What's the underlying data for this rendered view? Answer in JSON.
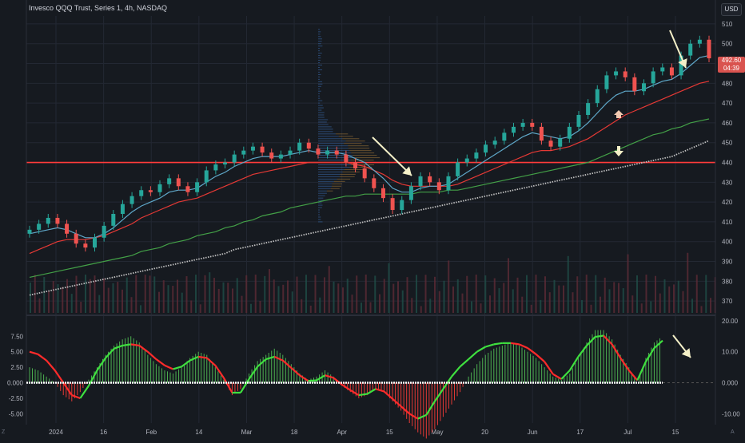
{
  "header": {
    "symbol_title": "Invesco QQQ Trust, Series 1, 4h, NASDAQ",
    "currency": "USD"
  },
  "last_price": {
    "value": "492.60",
    "countdown": "04:39"
  },
  "corner_labels": {
    "left": "Z",
    "right": "A"
  },
  "colors": {
    "background": "#161a20",
    "grid": "#232833",
    "candle_up": "#26a69a",
    "candle_down": "#ef5350",
    "ema_fast": "#5fa8c9",
    "ema_red": "#e53935",
    "ema_green": "#43a047",
    "ema_white": "#bfbfbf",
    "support_line": "#ff3b3b",
    "annotation_arrow": "#f4f0c8",
    "osc_up": "#4caf50",
    "osc_down": "#e53935"
  },
  "chart_data": [
    {
      "type": "line",
      "name": "price",
      "y_axis_ticks": [
        510,
        500,
        490,
        480,
        470,
        460,
        450,
        440,
        430,
        420,
        410,
        400,
        390,
        380,
        370
      ],
      "ylim": [
        364,
        514
      ],
      "x_tick_labels": [
        "2024",
        "16",
        "Feb",
        "14",
        "Mar",
        "18",
        "Apr",
        "15",
        "May",
        "20",
        "Jun",
        "17",
        "Jul",
        "15"
      ],
      "close_series": [
        406,
        409,
        412,
        409,
        404,
        399,
        397,
        402,
        408,
        414,
        419,
        423,
        426,
        425,
        429,
        432,
        428,
        425,
        430,
        436,
        439,
        440,
        444,
        446,
        448,
        445,
        442,
        444,
        446,
        450,
        447,
        444,
        446,
        444,
        440,
        437,
        432,
        427,
        422,
        416,
        421,
        428,
        433,
        430,
        426,
        433,
        440,
        442,
        445,
        449,
        451,
        455,
        458,
        460,
        458,
        451,
        448,
        452,
        458,
        464,
        470,
        477,
        484,
        486,
        483,
        476,
        480,
        486,
        488,
        484,
        494,
        500,
        502,
        492.6
      ],
      "support_level": 440,
      "ema_fast": [
        404,
        405,
        406,
        407,
        406,
        404,
        402,
        402,
        404,
        407,
        411,
        415,
        418,
        420,
        422,
        425,
        426,
        426,
        427,
        430,
        433,
        435,
        438,
        440,
        442,
        443,
        443,
        443,
        444,
        445,
        446,
        445,
        445,
        445,
        444,
        442,
        440,
        436,
        432,
        427,
        425,
        425,
        427,
        428,
        428,
        429,
        432,
        435,
        438,
        441,
        444,
        447,
        450,
        453,
        455,
        454,
        453,
        452,
        453,
        456,
        460,
        465,
        470,
        474,
        476,
        476,
        477,
        479,
        481,
        482,
        485,
        489,
        493,
        494
      ],
      "ema_red": [
        394,
        396,
        398,
        400,
        401,
        401,
        401,
        402,
        403,
        405,
        407,
        409,
        412,
        414,
        416,
        418,
        420,
        421,
        422,
        424,
        426,
        428,
        430,
        432,
        434,
        435,
        436,
        437,
        438,
        439,
        440,
        440,
        440,
        440,
        440,
        439,
        438,
        436,
        434,
        431,
        429,
        428,
        428,
        428,
        428,
        428,
        429,
        431,
        433,
        435,
        437,
        439,
        441,
        443,
        445,
        446,
        446,
        447,
        448,
        450,
        452,
        455,
        458,
        461,
        464,
        466,
        468,
        470,
        472,
        474,
        476,
        478,
        480,
        481
      ],
      "ema_green": [
        382,
        383,
        384,
        385,
        386,
        387,
        388,
        389,
        390,
        391,
        392,
        393,
        395,
        396,
        397,
        399,
        400,
        401,
        403,
        404,
        405,
        407,
        408,
        410,
        411,
        413,
        414,
        415,
        417,
        418,
        419,
        420,
        421,
        422,
        423,
        423,
        424,
        424,
        424,
        424,
        424,
        424,
        425,
        425,
        425,
        426,
        426,
        427,
        428,
        429,
        430,
        431,
        432,
        433,
        434,
        435,
        436,
        437,
        438,
        439,
        440,
        442,
        444,
        446,
        448,
        450,
        452,
        454,
        455,
        457,
        458,
        460,
        461,
        462
      ],
      "ema_white": [
        373,
        374,
        375,
        376,
        377,
        378,
        379,
        380,
        381,
        382,
        383,
        384,
        385,
        386,
        387,
        388,
        389,
        390,
        391,
        392,
        393,
        394,
        396,
        397,
        398,
        399,
        400,
        401,
        402,
        403,
        404,
        405,
        406,
        407,
        408,
        409,
        410,
        411,
        412,
        413,
        414,
        415,
        416,
        417,
        418,
        419,
        420,
        421,
        422,
        423,
        424,
        425,
        426,
        427,
        428,
        429,
        430,
        431,
        432,
        433,
        434,
        435,
        436,
        437,
        438,
        439,
        440,
        441,
        442,
        443,
        445,
        447,
        449,
        451
      ]
    },
    {
      "type": "area",
      "name": "oscillator",
      "left_axis_ticks": [
        "7.50",
        "5.00",
        "2.50",
        "0.000",
        "-2.50",
        "-5.00"
      ],
      "right_axis_ticks": [
        "20.00",
        "10.00",
        "0.000",
        "-10.00"
      ],
      "ylim": [
        -13,
        21
      ],
      "histogram": [
        5,
        4,
        2,
        0,
        -4,
        -6,
        -3,
        1,
        5,
        9,
        12,
        14,
        15,
        13,
        9,
        6,
        4,
        3,
        5,
        8,
        10,
        9,
        5,
        1,
        -4,
        -2,
        3,
        7,
        9,
        11,
        9,
        6,
        3,
        1,
        2,
        4,
        2,
        -1,
        -3,
        -5,
        -4,
        -2,
        -3,
        -6,
        -9,
        -13,
        -16,
        -18,
        -15,
        -11,
        -7,
        -3,
        2,
        6,
        9,
        11,
        12,
        13,
        12,
        10,
        8,
        5,
        2,
        1,
        3,
        8,
        13,
        17,
        17,
        14,
        9,
        5,
        0,
        8,
        13,
        15
      ],
      "signal_line": [
        5,
        4.6,
        3.6,
        2,
        0,
        -2,
        -2.5,
        -0.5,
        2,
        4,
        5.5,
        6,
        6.2,
        6,
        5,
        3.8,
        2.8,
        2.2,
        2.6,
        3.6,
        4.2,
        4,
        2.8,
        0.8,
        -1.6,
        -1.6,
        0.6,
        2.6,
        3.8,
        4.2,
        3.6,
        2.4,
        1.2,
        0.3,
        0.4,
        1.2,
        0.8,
        -0.3,
        -1.2,
        -2,
        -1.8,
        -1,
        -1.4,
        -2.6,
        -3.8,
        -5,
        -5.8,
        -5.2,
        -3,
        -1,
        1,
        2.6,
        3.8,
        5,
        5.8,
        6.2,
        6.4,
        6.4,
        6.2,
        5.6,
        4.6,
        3.4,
        1.4,
        0.6,
        2,
        4.2,
        6,
        7.4,
        7.6,
        6.2,
        4,
        2,
        0.4,
        3.4,
        5.6,
        6.8
      ]
    }
  ]
}
